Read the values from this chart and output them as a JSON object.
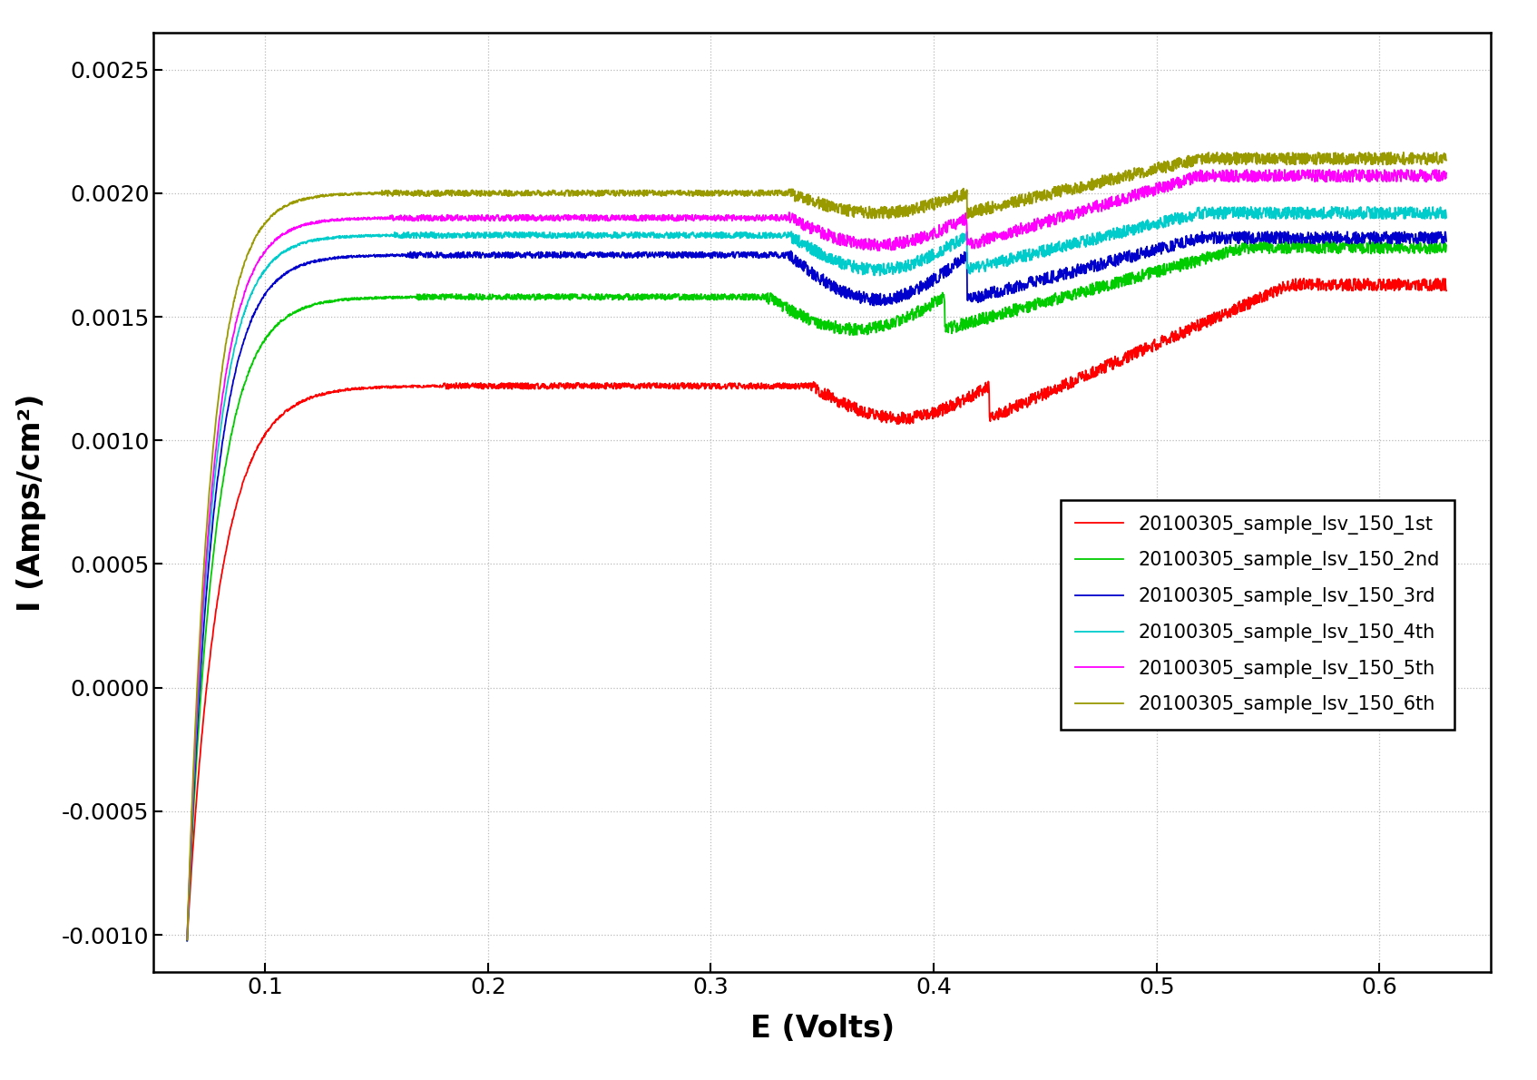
{
  "title": "",
  "xlabel": "E (Volts)",
  "ylabel": "I (Amps/cm²)",
  "xlim": [
    0.05,
    0.65
  ],
  "ylim": [
    -0.00115,
    0.00265
  ],
  "xticks": [
    0.1,
    0.2,
    0.3,
    0.4,
    0.5,
    0.6
  ],
  "yticks": [
    -0.001,
    -0.0005,
    0.0,
    0.0005,
    0.001,
    0.0015,
    0.002,
    0.0025
  ],
  "background_color": "#ffffff",
  "grid_color": "#aaaaaa",
  "series_colors": [
    "#ff0000",
    "#00cc00",
    "#0000cc",
    "#00cccc",
    "#ff00ff",
    "#999900"
  ],
  "series_labels": [
    "20100305_sample_lsv_150_1st",
    "20100305_sample_lsv_150_2nd",
    "20100305_sample_lsv_150_3rd",
    "20100305_sample_lsv_150_4th",
    "20100305_sample_lsv_150_5th",
    "20100305_sample_lsv_150_6th"
  ],
  "figsize": [
    16.94,
    11.9
  ],
  "dpi": 100
}
